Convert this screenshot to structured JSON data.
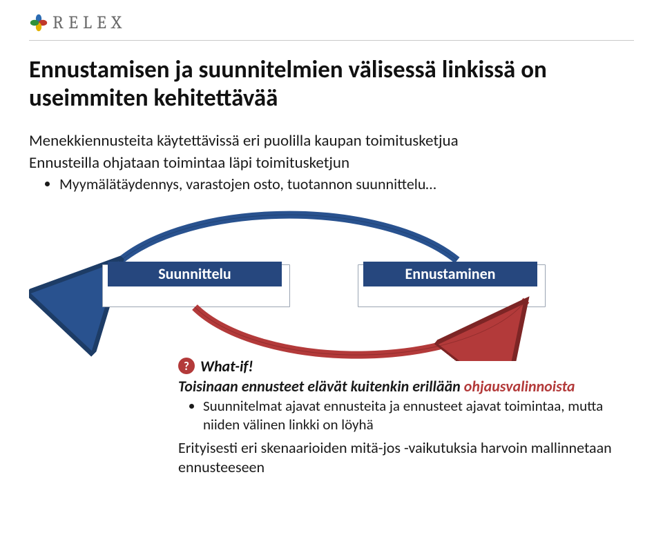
{
  "logo": {
    "text": "RELEX"
  },
  "colors": {
    "label_bg": "#26477e",
    "label_fg": "#ffffff",
    "box_border": "#9aa4b2",
    "arc_blue": "#29528f",
    "arc_blue_edge": "#1d3c66",
    "arc_red": "#b33a3a",
    "arc_red_edge": "#7d2525",
    "q_fill": "#b33a3a",
    "q_fg": "#ffffff",
    "emph_red": "#b33a3a",
    "petal_blue": "#2b6bb2",
    "petal_red": "#c0392b",
    "petal_yellow": "#e2b100",
    "petal_green": "#2f8f3a"
  },
  "title": "Ennustamisen ja suunnitelmien välisessä linkissä on useimmiten kehitettävää",
  "top": {
    "lead": "Menekkiennusteita käytettävissä eri puolilla kaupan toimitusketjua",
    "sub": "Ennusteilla ohjataan toimintaa läpi toimitusketjun",
    "bullet": "Myymälätäydennys, varastojen osto, tuotannon suunnittelu…"
  },
  "diagram": {
    "left_label": "Suunnittelu",
    "right_label": "Ennustaminen"
  },
  "whatif": {
    "mark": "?",
    "title": "What-if!",
    "lead": "Toisinaan ennusteet elävät kuitenkin erillään ohjausvalinnoista",
    "bullet": "Suunnitelmat ajavat ennusteita ja ennusteet ajavat toimintaa, mutta niiden välinen linkki on löyhä",
    "sub": "Erityisesti eri skenaarioiden mitä-jos -vaikutuksia harvoin mallinnetaan ennusteeseen"
  }
}
